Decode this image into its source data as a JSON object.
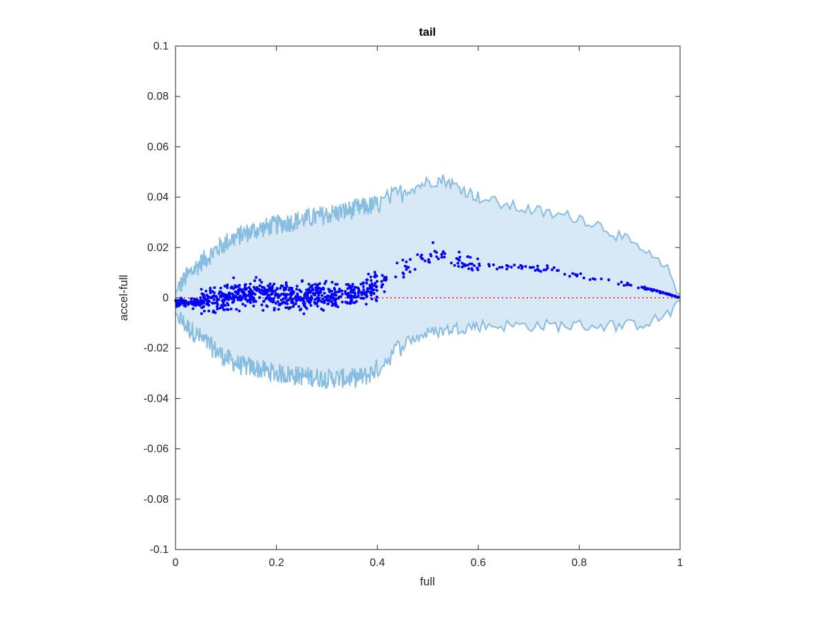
{
  "chart_data": {
    "type": "scatter",
    "title": "tail",
    "xlabel": "full",
    "ylabel": "accel-full",
    "xlim": [
      0,
      1
    ],
    "ylim": [
      -0.1,
      0.1
    ],
    "x_ticks": [
      "0",
      "0.2",
      "0.4",
      "0.6",
      "0.8",
      "1"
    ],
    "y_ticks": [
      "-0.1",
      "-0.08",
      "-0.06",
      "-0.04",
      "-0.02",
      "0",
      "0.02",
      "0.04",
      "0.06",
      "0.08",
      "0.1"
    ],
    "reference_line": {
      "y": 0,
      "style": "dotted",
      "color": "#ff0000"
    },
    "band": {
      "color_fill": "#d8e8f5",
      "color_edge": "#87bde0",
      "upper": [
        [
          0.0,
          0.002
        ],
        [
          0.02,
          0.008
        ],
        [
          0.05,
          0.014
        ],
        [
          0.08,
          0.019
        ],
        [
          0.1,
          0.022
        ],
        [
          0.13,
          0.025
        ],
        [
          0.16,
          0.027
        ],
        [
          0.2,
          0.029
        ],
        [
          0.25,
          0.031
        ],
        [
          0.3,
          0.033
        ],
        [
          0.35,
          0.035
        ],
        [
          0.4,
          0.037
        ],
        [
          0.43,
          0.04
        ],
        [
          0.46,
          0.043
        ],
        [
          0.5,
          0.046
        ],
        [
          0.53,
          0.047
        ],
        [
          0.56,
          0.044
        ],
        [
          0.6,
          0.04
        ],
        [
          0.65,
          0.037
        ],
        [
          0.7,
          0.035
        ],
        [
          0.75,
          0.033
        ],
        [
          0.8,
          0.032
        ],
        [
          0.85,
          0.028
        ],
        [
          0.9,
          0.022
        ],
        [
          0.95,
          0.015
        ],
        [
          0.98,
          0.01
        ],
        [
          1.0,
          0.001
        ]
      ],
      "lower": [
        [
          0.0,
          -0.006
        ],
        [
          0.02,
          -0.011
        ],
        [
          0.05,
          -0.016
        ],
        [
          0.08,
          -0.021
        ],
        [
          0.1,
          -0.024
        ],
        [
          0.13,
          -0.027
        ],
        [
          0.16,
          -0.028
        ],
        [
          0.2,
          -0.03
        ],
        [
          0.25,
          -0.031
        ],
        [
          0.3,
          -0.032
        ],
        [
          0.35,
          -0.032
        ],
        [
          0.38,
          -0.031
        ],
        [
          0.4,
          -0.028
        ],
        [
          0.43,
          -0.022
        ],
        [
          0.46,
          -0.017
        ],
        [
          0.5,
          -0.014
        ],
        [
          0.53,
          -0.013
        ],
        [
          0.56,
          -0.012
        ],
        [
          0.6,
          -0.011
        ],
        [
          0.65,
          -0.011
        ],
        [
          0.7,
          -0.011
        ],
        [
          0.75,
          -0.011
        ],
        [
          0.8,
          -0.011
        ],
        [
          0.85,
          -0.011
        ],
        [
          0.9,
          -0.011
        ],
        [
          0.95,
          -0.009
        ],
        [
          0.98,
          -0.006
        ],
        [
          1.0,
          -0.001
        ]
      ]
    },
    "series": [
      {
        "color": "#0000ff",
        "trend": [
          [
            0.0,
            -0.002
          ],
          [
            0.05,
            -0.002
          ],
          [
            0.1,
            0.0
          ],
          [
            0.15,
            0.002
          ],
          [
            0.2,
            0.001
          ],
          [
            0.25,
            0.0
          ],
          [
            0.3,
            0.001
          ],
          [
            0.35,
            0.002
          ],
          [
            0.38,
            0.003
          ],
          [
            0.4,
            0.005
          ],
          [
            0.43,
            0.009
          ],
          [
            0.46,
            0.012
          ],
          [
            0.5,
            0.017
          ],
          [
            0.53,
            0.016
          ],
          [
            0.56,
            0.015
          ],
          [
            0.6,
            0.013
          ],
          [
            0.65,
            0.012
          ],
          [
            0.7,
            0.012
          ],
          [
            0.75,
            0.011
          ],
          [
            0.8,
            0.009
          ],
          [
            0.85,
            0.007
          ],
          [
            0.9,
            0.005
          ],
          [
            0.95,
            0.003
          ],
          [
            1.0,
            0.0
          ]
        ],
        "point_count": 900
      }
    ],
    "grid": false,
    "legend": "none"
  }
}
